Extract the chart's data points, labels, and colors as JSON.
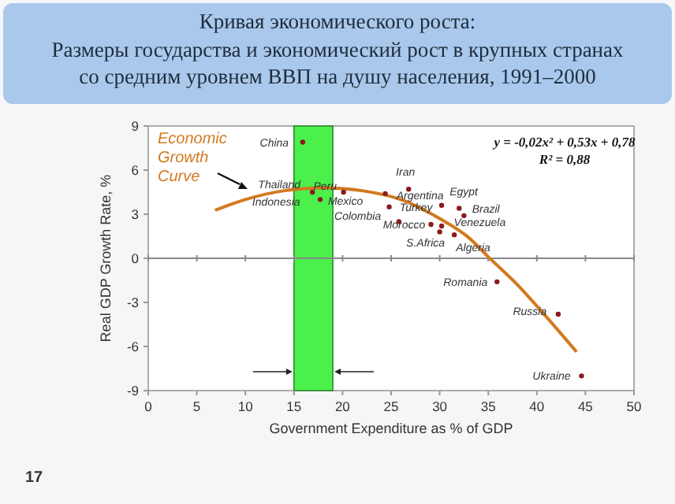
{
  "chart_data": {
    "type": "scatter",
    "title": "Кривая экономического роста:",
    "subtitle": "Размеры государства и экономический рост в крупных странах со средним уровнем ВВП на душу населения, 1991–2000",
    "xlabel": "Government Expenditure as % of GDP",
    "ylabel": "Real GDP Growth Rate, %",
    "xlim": [
      0,
      50
    ],
    "ylim": [
      -9,
      9
    ],
    "xticks": [
      0,
      5,
      10,
      15,
      20,
      25,
      30,
      35,
      40,
      45,
      50
    ],
    "yticks": [
      -9,
      -6,
      -3,
      0,
      3,
      6,
      9
    ],
    "grid": false,
    "series": [
      {
        "type": "scatter",
        "color": "#8b1a1a",
        "marker": "circle",
        "x": [
          15.9,
          16.9,
          17.7,
          20.1,
          24.4,
          24.8,
          26.8,
          30.2,
          32,
          25.8,
          29.1,
          30.2,
          30,
          31.5,
          32.5,
          35.9,
          42.2,
          44.6
        ],
        "values": [
          7.9,
          4.5,
          4.0,
          4.5,
          4.4,
          3.5,
          4.7,
          3.6,
          3.4,
          2.5,
          2.3,
          2.2,
          1.8,
          1.6,
          2.9,
          -1.6,
          -3.8,
          -8.0
        ]
      },
      {
        "type": "line",
        "color": "#d2791f",
        "marker": "none",
        "line_style": "solid",
        "x": [
          7,
          10,
          14,
          18,
          22,
          26,
          30,
          33,
          35,
          38,
          41,
          44
        ],
        "values": [
          3.3,
          4.0,
          4.6,
          4.8,
          4.6,
          4.0,
          2.7,
          1.4,
          0.1,
          -1.8,
          -4.0,
          -6.3
        ]
      }
    ],
    "bands": [
      {
        "axis": "x",
        "from": 15,
        "to": 19,
        "color": "#4cf04c"
      }
    ],
    "ref_lines": [
      {
        "axis": "y",
        "value": 0,
        "color": "#888888"
      }
    ],
    "annotations": [
      "Economic Growth Curve",
      "y = -0,02x² + 0,53x + 0,78",
      "R² = 0,88",
      {
        "text": "China",
        "x": 15.9,
        "y": 7.9
      },
      {
        "text": "Thailand",
        "x": 16.9,
        "y": 4.5
      },
      {
        "text": "Peru",
        "x": 16.9,
        "y": 4.5
      },
      {
        "text": "Indonesia",
        "x": 16.9,
        "y": 4.5
      },
      {
        "text": "Mexico",
        "x": 17.7,
        "y": 4.0
      },
      {
        "text": "Colombia",
        "x": 20.1,
        "y": 4.5
      },
      {
        "text": "Iran",
        "x": 26.8,
        "y": 4.7
      },
      {
        "text": "Argentina",
        "x": 24.4,
        "y": 4.4
      },
      {
        "text": "Turkey",
        "x": 24.8,
        "y": 3.5
      },
      {
        "text": "Egypt",
        "x": 30.2,
        "y": 3.6
      },
      {
        "text": "Brazil",
        "x": 32,
        "y": 3.4
      },
      {
        "text": "Venezuela",
        "x": 32.5,
        "y": 2.9
      },
      {
        "text": "Morocco",
        "x": 29.1,
        "y": 2.3
      },
      {
        "text": "S.Africa",
        "x": 30,
        "y": 1.8
      },
      {
        "text": "Algeria",
        "x": 31.5,
        "y": 1.6
      },
      {
        "text": "Romania",
        "x": 35.9,
        "y": -1.6
      },
      {
        "text": "Russia",
        "x": 42.2,
        "y": -3.8
      },
      {
        "text": "Ukraine",
        "x": 44.6,
        "y": -8.0
      },
      "17"
    ]
  }
}
